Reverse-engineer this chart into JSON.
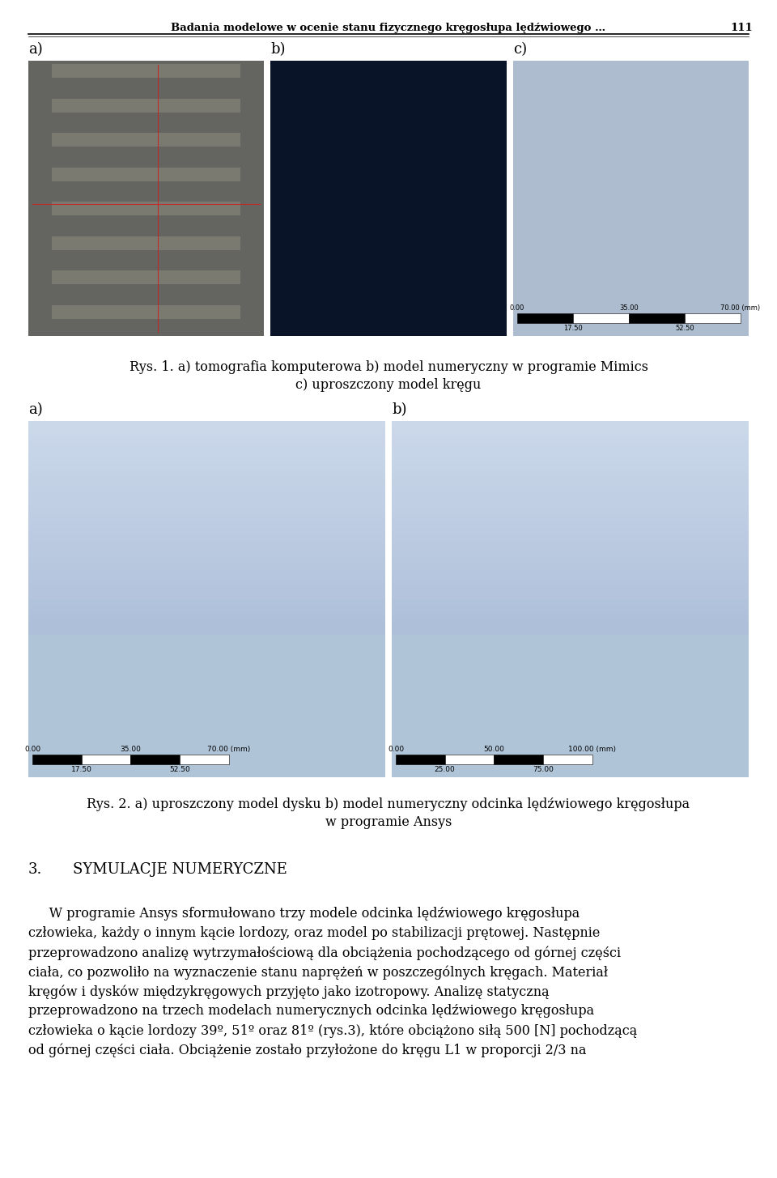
{
  "header_text": "Badania modelowe w ocenie stanu fizycznego kręgosłupa lędźwiowego …",
  "header_page": "111",
  "page_bg": "#ffffff",
  "fig1_caption_line1": "Rys. 1. a) tomografia komputerowa b) model numeryczny w programie Mimics",
  "fig1_caption_line2": "c) uproszczony model kręgu",
  "fig2_caption_line1": "Rys. 2. a) uproszczony model dysku b) model numeryczny odcinka lędźwiowego kręgosłupa",
  "fig2_caption_line2": "w programie Ansys",
  "section_num": "3.",
  "section_title": "SYMULACJE NUMERYCZNE",
  "body_lines": [
    "     W programie Ansys sformułowano trzy modele odcinka lędźwiowego kręgosłupa",
    "człowieka, każdy o innym kącie lordozy, oraz model po stabilizacji prętowej. Następnie",
    "przeprowadzono analizę wytrzymałościową dla obciążenia pochodzącego od górnej części",
    "ciała, co pozwoliło na wyznaczenie stanu naprężeń w poszczególnych kręgach. Materiał",
    "kręgów i dysków międzykręgowych przyjęto jako izotropowy. Analizę statyczną",
    "przeprowadzono na trzech modelach numerycznych odcinka lędźwiowego kręgosłupa",
    "człowieka o kącie lordozy 39º, 51º oraz 81º (rys.3), które obciążono siłą 500 [N] pochodzącą",
    "od górnej części ciała. Obciążenie zostało przyłożone do kręgu L1 w proporcji 2/3 na"
  ],
  "img1a_bg": "#7a7a6a",
  "img1b_bg": "#0a1535",
  "img1c_bg": "#adbdcc",
  "img2a_bg": "#adbdcc",
  "img2b_bg": "#adbdcc",
  "label_fontsize": 13,
  "caption_fontsize": 11.5,
  "body_fontsize": 11.5,
  "section_fontsize": 13,
  "header_fontsize": 9.5
}
